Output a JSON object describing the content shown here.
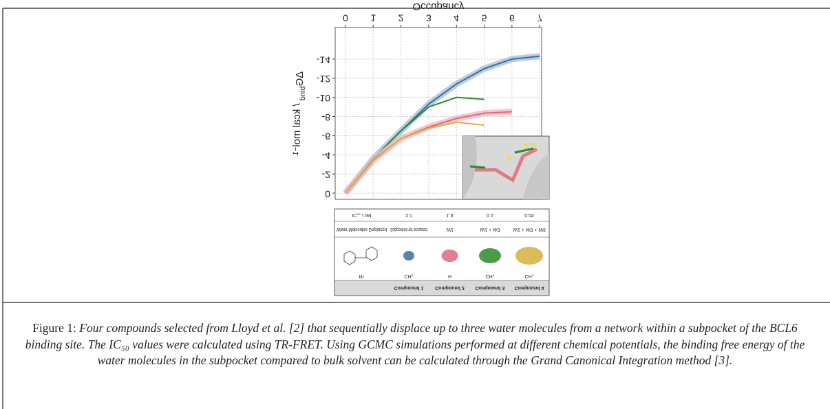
{
  "chart_data": {
    "type": "line",
    "x_label": "Occupancy",
    "y_label": {
      "symbol": "ΔG",
      "subscript": "bind",
      "unit": " / kcal mol",
      "superscript": "−1"
    },
    "x": [
      0,
      1,
      2,
      3,
      4,
      5,
      6,
      7
    ],
    "series": [
      {
        "color": "#3d6d9e",
        "band": "#a9c1dc",
        "values": [
          0,
          -3.6,
          -6.5,
          -9.3,
          -11.4,
          -13.0,
          -14.0,
          -14.3
        ]
      },
      {
        "color": "#2a8a2a",
        "values": [
          0,
          -3.6,
          -6.5,
          -9.0,
          -10.0,
          -9.8,
          null,
          null
        ]
      },
      {
        "color": "#e0657b",
        "band": "#f3b8c3",
        "values": [
          0,
          -3.45,
          -5.7,
          -6.9,
          -7.8,
          -8.35,
          -8.5,
          null
        ]
      },
      {
        "color": "#d4b23c",
        "values": [
          0,
          -3.4,
          -5.7,
          -6.8,
          -7.4,
          -7.1,
          null,
          null
        ]
      }
    ],
    "xlim": [
      -0.37,
      7.07
    ],
    "xticks": [
      0,
      1,
      2,
      3,
      4,
      5,
      6,
      7
    ],
    "ylim": [
      -17.3,
      0.65
    ],
    "yticks": [
      0,
      -2,
      -4,
      -6,
      -8,
      -10,
      -12,
      -14
    ],
    "grid": true
  },
  "table": {
    "columns": [
      "Compound 1",
      "Compound 2",
      "Compound 3",
      "Compound 4"
    ],
    "rows": [
      {
        "label": "R¹",
        "cells": [
          "CH₃",
          "H",
          "CH₃",
          "CH₃"
        ]
      },
      {
        "label": "Water Molecules Displaced",
        "cells": [
          "Subpocket not occupied",
          "W1",
          "W1 + W3",
          "W1 + W3 + W5"
        ]
      },
      {
        "label": "IC₅₀ / nM",
        "cells": [
          "2.7",
          "1.3",
          "0.1",
          "0.05"
        ]
      }
    ]
  },
  "caption": {
    "label": "Figure 1:",
    "text": "Four compounds selected from Lloyd et al. [2] that sequentially displace up to three water molecules from a network within a subpocket of the BCL6 binding site. The IC₅₀ values were calculated using TR-FRET. Using GCMC simulations performed at different chemical potentials, the binding free energy of the water molecules in the subpocket compared to bulk solvent can be calculated through the Grand Canonical Integration method [3]."
  }
}
